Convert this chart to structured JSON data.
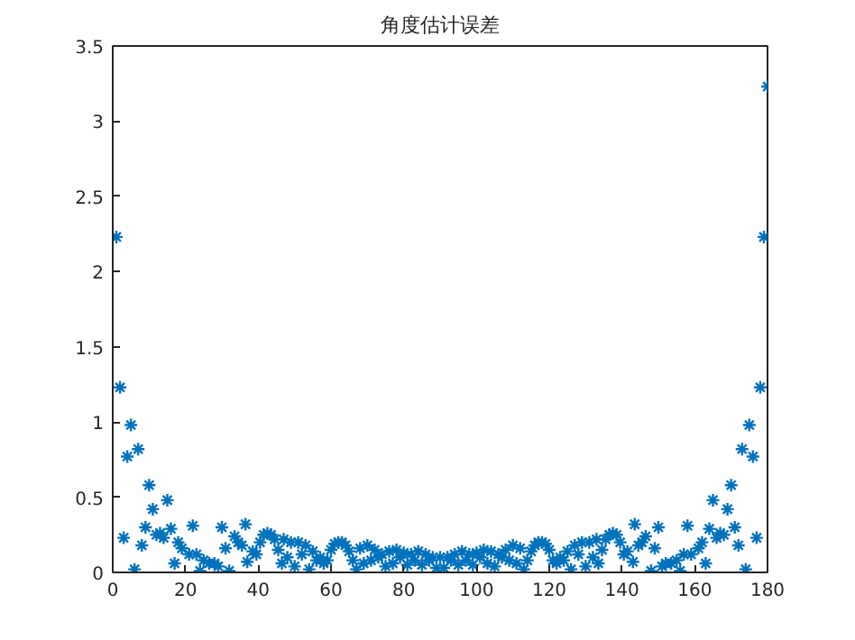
{
  "chart_data": {
    "type": "scatter",
    "title": "角度估计误差",
    "xlim": [
      0,
      180
    ],
    "xticks": [
      0,
      20,
      40,
      60,
      80,
      100,
      120,
      140,
      160,
      180
    ],
    "ylim": [
      0,
      3.5
    ],
    "yticks": [
      0,
      0.5,
      1,
      1.5,
      2,
      2.5,
      3,
      3.5
    ],
    "grid": false,
    "marker": "cross",
    "series": [
      {
        "color": "#0072bd",
        "x": [
          1,
          2,
          3,
          4,
          5,
          6,
          7,
          8,
          9,
          10,
          11,
          12,
          13,
          14,
          15,
          16,
          17,
          18,
          19,
          21,
          22,
          23,
          24,
          25,
          26.5,
          28,
          29,
          30,
          31,
          32,
          33.5,
          34.5,
          35.5,
          36.5,
          37,
          38.5,
          39.5,
          40.5,
          41.5,
          42.5,
          43.5,
          44.5,
          45.5,
          46.5,
          47,
          48,
          49,
          50,
          51,
          52,
          53,
          54,
          55,
          56,
          57,
          58,
          59,
          60,
          61,
          62,
          63,
          64,
          65,
          66,
          67,
          68,
          69,
          70,
          71,
          72,
          73,
          74,
          75,
          76,
          77,
          78,
          79,
          80,
          81,
          82,
          83,
          84,
          85,
          86,
          87,
          88,
          89,
          90,
          91,
          92,
          93,
          94,
          95,
          96,
          97,
          98,
          99,
          100,
          101,
          102,
          103,
          104,
          105,
          106,
          107,
          108,
          109,
          110,
          111,
          112,
          113,
          114,
          115,
          116,
          117,
          118,
          119,
          120,
          121,
          122,
          123,
          124,
          125,
          126,
          127,
          128,
          129,
          130,
          131,
          132,
          133,
          133.5,
          134.5,
          135.5,
          136.5,
          137.5,
          138.5,
          139.5,
          140.5,
          141.5,
          143,
          143.5,
          144.5,
          145.5,
          146.5,
          148,
          149,
          150,
          151,
          152,
          153.5,
          155,
          156,
          157,
          158,
          159,
          161,
          162,
          163,
          164,
          165,
          166,
          167,
          168,
          169,
          170,
          171,
          172,
          173,
          174,
          175,
          176,
          177,
          178,
          179,
          180
        ],
        "values": [
          2.23,
          1.23,
          0.23,
          0.77,
          0.98,
          0.02,
          0.82,
          0.18,
          0.3,
          0.58,
          0.42,
          0.25,
          0.26,
          0.23,
          0.48,
          0.29,
          0.06,
          0.2,
          0.16,
          0.12,
          0.31,
          0.12,
          0.01,
          0.08,
          0.06,
          0.06,
          0.04,
          0.3,
          0.16,
          0.01,
          0.24,
          0.2,
          0.18,
          0.32,
          0.07,
          0.14,
          0.12,
          0.2,
          0.25,
          0.26,
          0.25,
          0.22,
          0.15,
          0.06,
          0.22,
          0.1,
          0.2,
          0.04,
          0.2,
          0.12,
          0.18,
          0.02,
          0.14,
          0.08,
          0.1,
          0.06,
          0.08,
          0.15,
          0.19,
          0.2,
          0.2,
          0.18,
          0.14,
          0.08,
          0.02,
          0.16,
          0.06,
          0.18,
          0.08,
          0.15,
          0.1,
          0.12,
          0.04,
          0.14,
          0.06,
          0.15,
          0.1,
          0.13,
          0.05,
          0.12,
          0.08,
          0.14,
          0.05,
          0.12,
          0.08,
          0.1,
          0.03,
          0.1,
          0.03,
          0.1,
          0.08,
          0.12,
          0.05,
          0.14,
          0.08,
          0.12,
          0.05,
          0.13,
          0.1,
          0.15,
          0.06,
          0.14,
          0.04,
          0.12,
          0.1,
          0.15,
          0.08,
          0.18,
          0.06,
          0.16,
          0.02,
          0.08,
          0.14,
          0.18,
          0.2,
          0.2,
          0.19,
          0.15,
          0.08,
          0.06,
          0.1,
          0.08,
          0.14,
          0.02,
          0.18,
          0.12,
          0.2,
          0.04,
          0.2,
          0.1,
          0.22,
          0.06,
          0.15,
          0.22,
          0.25,
          0.26,
          0.25,
          0.2,
          0.12,
          0.14,
          0.07,
          0.32,
          0.18,
          0.2,
          0.24,
          0.01,
          0.16,
          0.3,
          0.04,
          0.06,
          0.06,
          0.08,
          0.01,
          0.12,
          0.31,
          0.12,
          0.16,
          0.2,
          0.06,
          0.29,
          0.48,
          0.23,
          0.26,
          0.25,
          0.42,
          0.58,
          0.3,
          0.18,
          0.82,
          0.02,
          0.98,
          0.77,
          0.23,
          1.23,
          2.23,
          3.23
        ]
      }
    ]
  }
}
